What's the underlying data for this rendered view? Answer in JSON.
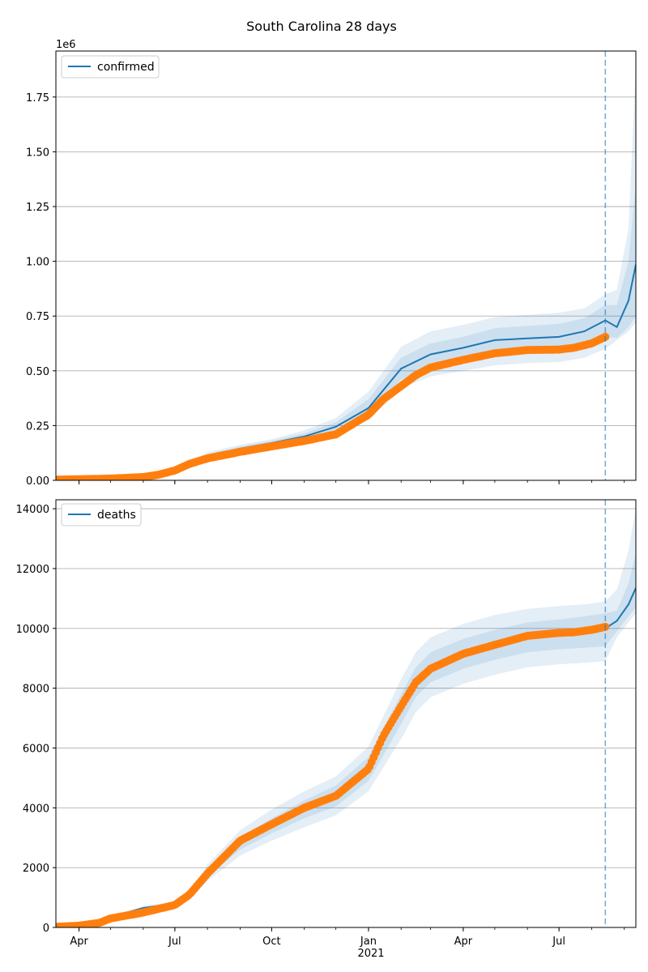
{
  "title": "South Carolina 28 days",
  "colors": {
    "model_line": "#1f77b4",
    "observed": "#ff7f0e",
    "band": "#1f77b4",
    "grid": "#b0b0b0",
    "vline": "#1f77b4"
  },
  "chart_data": [
    {
      "type": "line",
      "legend": "confirmed",
      "legend_position": "top-left",
      "scale_label": "1e6",
      "ylim": [
        0,
        1960000
      ],
      "yticks": [
        0,
        250000,
        500000,
        750000,
        1000000,
        1250000,
        1500000,
        1750000
      ],
      "ytick_labels": [
        "0.00",
        "0.25",
        "0.50",
        "0.75",
        "1.00",
        "1.25",
        "1.50",
        "1.75"
      ],
      "grid": "horizontal",
      "forecast_start": "2021-08-14",
      "model": {
        "x": [
          "2020-03-10",
          "2020-06-01",
          "2020-07-01",
          "2020-08-01",
          "2020-09-01",
          "2020-10-01",
          "2020-11-01",
          "2020-12-01",
          "2021-01-01",
          "2021-02-01",
          "2021-03-01",
          "2021-04-01",
          "2021-05-01",
          "2021-06-01",
          "2021-07-01",
          "2021-07-25",
          "2021-08-14",
          "2021-08-25",
          "2021-09-05",
          "2021-09-12"
        ],
        "y": [
          5000,
          15000,
          45000,
          110000,
          145000,
          170000,
          200000,
          245000,
          330000,
          510000,
          575000,
          605000,
          640000,
          648000,
          655000,
          680000,
          730000,
          700000,
          820000,
          985000
        ],
        "band_inner": [
          [
            5000,
            5000
          ],
          [
            14000,
            16000
          ],
          [
            42000,
            48000
          ],
          [
            100000,
            120000
          ],
          [
            135000,
            155000
          ],
          [
            160000,
            180000
          ],
          [
            185000,
            215000
          ],
          [
            225000,
            265000
          ],
          [
            300000,
            370000
          ],
          [
            460000,
            560000
          ],
          [
            520000,
            625000
          ],
          [
            550000,
            655000
          ],
          [
            580000,
            695000
          ],
          [
            590000,
            705000
          ],
          [
            595000,
            715000
          ],
          [
            615000,
            740000
          ],
          [
            655000,
            800000
          ],
          [
            650000,
            800000
          ],
          [
            700000,
            1000000
          ],
          [
            750000,
            1350000
          ]
        ],
        "band_outer": [
          [
            5000,
            5000
          ],
          [
            13000,
            17000
          ],
          [
            40000,
            52000
          ],
          [
            92000,
            128000
          ],
          [
            128000,
            162000
          ],
          [
            152000,
            188000
          ],
          [
            175000,
            228000
          ],
          [
            210000,
            285000
          ],
          [
            275000,
            405000
          ],
          [
            420000,
            610000
          ],
          [
            475000,
            680000
          ],
          [
            500000,
            710000
          ],
          [
            525000,
            745000
          ],
          [
            535000,
            755000
          ],
          [
            540000,
            765000
          ],
          [
            560000,
            785000
          ],
          [
            600000,
            850000
          ],
          [
            640000,
            870000
          ],
          [
            680000,
            1150000
          ],
          [
            720000,
            1900000
          ]
        ]
      },
      "observed": {
        "x": [
          "2020-03-10",
          "2020-04-01",
          "2020-05-01",
          "2020-06-01",
          "2020-06-15",
          "2020-07-01",
          "2020-07-15",
          "2020-08-01",
          "2020-09-01",
          "2020-10-01",
          "2020-11-01",
          "2020-12-01",
          "2021-01-01",
          "2021-01-15",
          "2021-02-01",
          "2021-02-15",
          "2021-03-01",
          "2021-04-01",
          "2021-05-01",
          "2021-06-01",
          "2021-07-01",
          "2021-07-15",
          "2021-08-01",
          "2021-08-14"
        ],
        "y": [
          3000,
          5000,
          8000,
          15000,
          25000,
          45000,
          75000,
          100000,
          130000,
          155000,
          180000,
          210000,
          300000,
          370000,
          430000,
          480000,
          515000,
          550000,
          580000,
          595000,
          597000,
          605000,
          625000,
          655000
        ]
      }
    },
    {
      "type": "line",
      "legend": "deaths",
      "legend_position": "top-left",
      "ylim": [
        0,
        14300
      ],
      "yticks": [
        0,
        2000,
        4000,
        6000,
        8000,
        10000,
        12000,
        14000
      ],
      "ytick_labels": [
        "0",
        "2000",
        "4000",
        "6000",
        "8000",
        "10000",
        "12000",
        "14000"
      ],
      "grid": "horizontal",
      "forecast_start": "2021-08-14",
      "model": {
        "x": [
          "2020-03-10",
          "2020-04-15",
          "2020-06-01",
          "2020-07-01",
          "2020-07-15",
          "2020-08-01",
          "2020-09-01",
          "2020-10-01",
          "2020-11-01",
          "2020-12-01",
          "2021-01-01",
          "2021-01-15",
          "2021-02-01",
          "2021-02-15",
          "2021-03-01",
          "2021-04-01",
          "2021-05-01",
          "2021-06-01",
          "2021-07-01",
          "2021-07-25",
          "2021-08-14",
          "2021-08-25",
          "2021-09-05",
          "2021-09-12"
        ],
        "y": [
          20,
          180,
          650,
          800,
          1100,
          1800,
          2800,
          3400,
          3950,
          4400,
          5300,
          6200,
          7300,
          8200,
          8700,
          9150,
          9450,
          9700,
          9820,
          9900,
          10000,
          10250,
          10800,
          11350
        ],
        "band_inner": [
          [
            20,
            20
          ],
          [
            170,
            190
          ],
          [
            610,
            690
          ],
          [
            760,
            840
          ],
          [
            1050,
            1150
          ],
          [
            1700,
            1950
          ],
          [
            2600,
            3000
          ],
          [
            3150,
            3650
          ],
          [
            3650,
            4250
          ],
          [
            4050,
            4750
          ],
          [
            4900,
            5700
          ],
          [
            5750,
            6650
          ],
          [
            6800,
            7800
          ],
          [
            7700,
            8700
          ],
          [
            8200,
            9200
          ],
          [
            8650,
            9650
          ],
          [
            8950,
            9950
          ],
          [
            9200,
            10200
          ],
          [
            9300,
            10300
          ],
          [
            9350,
            10400
          ],
          [
            9400,
            10500
          ],
          [
            9900,
            10600
          ],
          [
            10400,
            11500
          ],
          [
            10700,
            12500
          ]
        ],
        "band_outer": [
          [
            20,
            20
          ],
          [
            160,
            200
          ],
          [
            580,
            720
          ],
          [
            730,
            870
          ],
          [
            1000,
            1200
          ],
          [
            1550,
            2100
          ],
          [
            2400,
            3250
          ],
          [
            2900,
            3950
          ],
          [
            3350,
            4550
          ],
          [
            3750,
            5050
          ],
          [
            4550,
            6050
          ],
          [
            5350,
            7050
          ],
          [
            6300,
            8300
          ],
          [
            7200,
            9200
          ],
          [
            7700,
            9700
          ],
          [
            8150,
            10150
          ],
          [
            8450,
            10450
          ],
          [
            8700,
            10650
          ],
          [
            8800,
            10750
          ],
          [
            8850,
            10800
          ],
          [
            8900,
            10900
          ],
          [
            9700,
            11300
          ],
          [
            10200,
            12600
          ],
          [
            10500,
            14000
          ]
        ]
      },
      "observed": {
        "x": [
          "2020-03-10",
          "2020-04-01",
          "2020-04-20",
          "2020-05-01",
          "2020-06-01",
          "2020-07-01",
          "2020-07-15",
          "2020-08-01",
          "2020-09-01",
          "2020-10-01",
          "2020-11-01",
          "2020-12-01",
          "2021-01-01",
          "2021-01-15",
          "2021-02-01",
          "2021-02-15",
          "2021-03-01",
          "2021-04-01",
          "2021-05-01",
          "2021-06-01",
          "2021-07-01",
          "2021-07-15",
          "2021-08-01",
          "2021-08-14"
        ],
        "y": [
          20,
          60,
          150,
          300,
          500,
          750,
          1100,
          1800,
          2900,
          3450,
          4000,
          4400,
          5300,
          6400,
          7400,
          8200,
          8650,
          9150,
          9450,
          9750,
          9850,
          9870,
          9950,
          10050
        ]
      }
    }
  ],
  "x_axis": {
    "range": [
      "2020-03-10",
      "2021-09-12"
    ],
    "major_ticks": [
      {
        "date": "2020-04-01",
        "label": "Apr"
      },
      {
        "date": "2020-07-01",
        "label": "Jul"
      },
      {
        "date": "2020-10-01",
        "label": "Oct"
      },
      {
        "date": "2021-01-01",
        "label": "Jan"
      },
      {
        "date": "2021-04-01",
        "label": "Apr"
      },
      {
        "date": "2021-07-01",
        "label": "Jul"
      }
    ],
    "year_label": {
      "date": "2021-01-01",
      "label": "2021"
    }
  }
}
